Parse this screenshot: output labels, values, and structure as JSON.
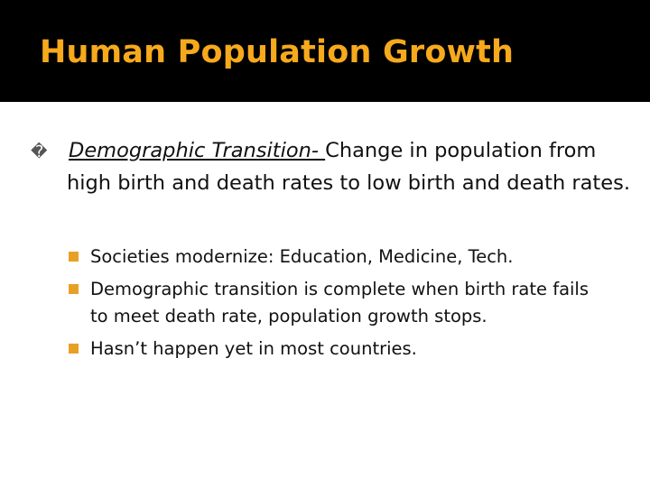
{
  "slide": {
    "title": "Human Population Growth",
    "colors": {
      "band": "#000000",
      "title": "#f7a91c",
      "sub_bullet": "#e8a024"
    },
    "main_point": {
      "bullet_glyph": "�",
      "term": "Demographic Transition- ",
      "text": "Change in population from high birth and death rates to low birth and death rates."
    },
    "sub_points": [
      "Societies modernize: Education, Medicine, Tech.",
      "Demographic transition is complete when birth rate fails to meet death rate, population growth stops.",
      "Hasn’t happen yet in most countries."
    ]
  }
}
